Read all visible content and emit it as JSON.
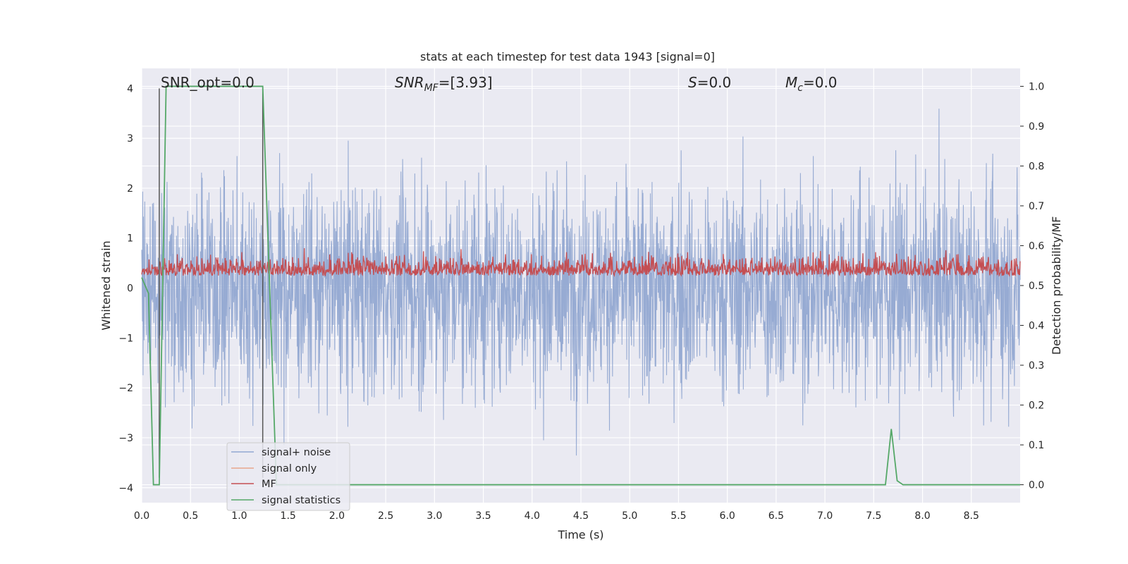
{
  "chart_data": {
    "type": "line",
    "title": "stats at each timestep for test data 1943 [signal=0]",
    "xlabel": "Time (s)",
    "ylabel": "Whitened strain",
    "ylabel_right": "Detection probability/MF",
    "xlim": [
      0.0,
      9.0
    ],
    "ylim": [
      -4.3,
      4.4
    ],
    "ylim_right": [
      -0.045,
      1.045
    ],
    "x_ticks": [
      "0.0",
      "0.5",
      "1.0",
      "1.5",
      "2.0",
      "2.5",
      "3.0",
      "3.5",
      "4.0",
      "4.5",
      "5.0",
      "5.5",
      "6.0",
      "6.5",
      "7.0",
      "7.5",
      "8.0",
      "8.5"
    ],
    "y_ticks": [
      "-4",
      "-3",
      "-2",
      "-1",
      "0",
      "1",
      "2",
      "3",
      "4"
    ],
    "y_ticks_right": [
      "0.0",
      "0.1",
      "0.2",
      "0.3",
      "0.4",
      "0.5",
      "0.6",
      "0.7",
      "0.8",
      "0.9",
      "1.0"
    ],
    "grid": true,
    "legend_position": "lower-left",
    "annotations": {
      "snr_opt": "SNR_opt=0.0",
      "snr_mf_main": "SNR",
      "snr_mf_sub": "MF",
      "snr_mf_rest": "=[3.93]",
      "s_main": "S",
      "s_rest": "=0.0",
      "mc_main": "M",
      "mc_sub": "c",
      "mc_rest": "=0.0"
    },
    "vertical_lines_x": [
      0.18,
      1.24
    ],
    "series": [
      {
        "name": "signal+ noise",
        "color": "#92a8d1",
        "style": "dense white-noise trace, amplitude about ±4 (peaks near 4.0, troughs near -3.8)"
      },
      {
        "name": "signal only",
        "color": "#e8a68c",
        "values": []
      },
      {
        "name": "MF",
        "color": "#c44e52",
        "style": "matched-filter output on right axis, between about 0.50 and 0.60"
      },
      {
        "name": "signal statistics",
        "color": "#55a868",
        "x": [
          0.0,
          0.07,
          0.12,
          0.18,
          0.25,
          1.24,
          1.31,
          1.38,
          7.62,
          7.68,
          7.74,
          7.8,
          9.0
        ],
        "y": [
          0.52,
          0.48,
          0.0,
          0.0,
          1.0,
          1.0,
          0.5,
          0.0,
          0.0,
          0.14,
          0.01,
          0.0,
          0.0
        ]
      }
    ]
  }
}
